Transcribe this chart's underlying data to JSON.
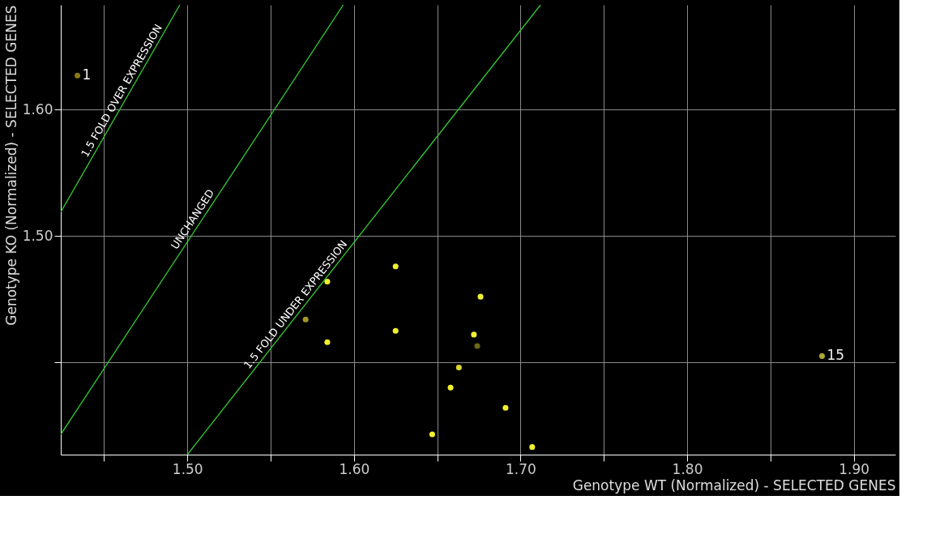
{
  "chart_data": {
    "type": "scatter",
    "xlabel": "Genotype WT (Normalized) - SELECTED GENES",
    "ylabel": "Genotype KO (Normalized) - SELECTED GENES",
    "xlim": [
      1.424,
      1.925
    ],
    "ylim": [
      1.327,
      1.683
    ],
    "xticks": [
      {
        "value": 1.45,
        "label": null
      },
      {
        "value": 1.5,
        "label": "1.50"
      },
      {
        "value": 1.55,
        "label": null
      },
      {
        "value": 1.6,
        "label": "1.60"
      },
      {
        "value": 1.65,
        "label": null
      },
      {
        "value": 1.7,
        "label": "1.70"
      },
      {
        "value": 1.75,
        "label": null
      },
      {
        "value": 1.8,
        "label": "1.80"
      },
      {
        "value": 1.85,
        "label": null
      },
      {
        "value": 1.9,
        "label": "1.90"
      }
    ],
    "yticks": [
      {
        "value": 1.4,
        "label": null
      },
      {
        "value": 1.5,
        "label": "1.50"
      },
      {
        "value": 1.6,
        "label": "1.60"
      }
    ],
    "grid": true,
    "series": [
      {
        "x": [
          1.434,
          1.571,
          1.584,
          1.584,
          1.625,
          1.625,
          1.647,
          1.658,
          1.663,
          1.672,
          1.674,
          1.676,
          1.691,
          1.707,
          1.881
        ],
        "values": [
          1.627,
          1.434,
          1.464,
          1.416,
          1.476,
          1.425,
          1.343,
          1.38,
          1.396,
          1.422,
          1.413,
          1.452,
          1.364,
          1.333,
          1.405
        ],
        "colors": [
          "#8c7a14",
          "#a09a28",
          "#f0f030",
          "#f0f030",
          "#f0f030",
          "#f0f030",
          "#f0f030",
          "#f0f030",
          "#d8d830",
          "#f0f030",
          "#6a6a18",
          "#f0f030",
          "#f0f030",
          "#f0f030",
          "#a8a838"
        ]
      },
      {
        "type": "line",
        "color": "#33cc33",
        "x": [
          1.424,
          1.4955
        ],
        "values": [
          1.519,
          1.683
        ]
      },
      {
        "type": "line",
        "color": "#33cc33",
        "x": [
          1.424,
          1.5936
        ],
        "values": [
          1.343,
          1.683
        ]
      },
      {
        "type": "line",
        "color": "#33cc33",
        "x": [
          1.5,
          1.712
        ],
        "values": [
          1.327,
          1.683
        ]
      }
    ],
    "annotations": [
      {
        "text": "1.5 FOLD OVER EXPRESSION",
        "x": 1.4645,
        "y": 1.612
      },
      {
        "text": "UNCHANGED",
        "x": 1.507,
        "y": 1.51
      },
      {
        "text": "1.5 FOLD UNDER  EXPRESSION",
        "x": 1.5685,
        "y": 1.442
      },
      {
        "text": "1",
        "x": 1.434,
        "y": 1.627
      },
      {
        "text": "15",
        "x": 1.881,
        "y": 1.405
      }
    ]
  }
}
